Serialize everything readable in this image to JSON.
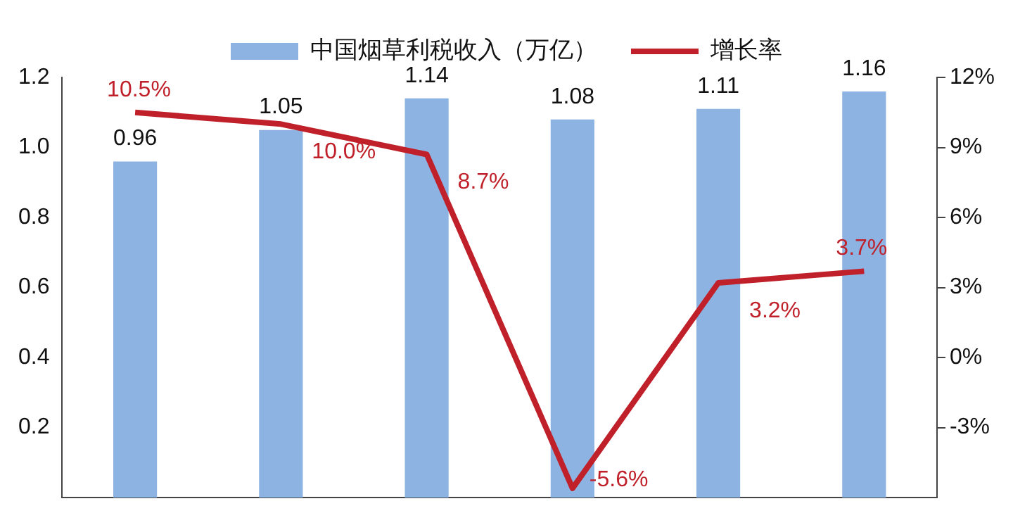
{
  "chart_data": {
    "type": "bar",
    "categories": [
      null,
      null,
      null,
      null,
      null,
      null
    ],
    "series": [
      {
        "name": "中国烟草利税收入（万亿）",
        "color": "#8db3e2",
        "values": [
          0.96,
          1.05,
          1.14,
          1.08,
          1.11,
          1.16
        ],
        "value_labels": [
          "0.96",
          "1.05",
          "1.14",
          "1.08",
          "1.11",
          "1.16"
        ]
      },
      {
        "name": "增长率",
        "type": "line",
        "axis": "y2",
        "color": "#c0202a",
        "values": [
          10.5,
          10.0,
          8.7,
          -5.6,
          3.2,
          3.7
        ],
        "value_labels": [
          "10.5%",
          "10.0%",
          "8.7%",
          "-5.6%",
          "3.2%",
          "3.7%"
        ]
      }
    ],
    "ylim": [
      0,
      1.2
    ],
    "yticks": [
      0.2,
      0.4,
      0.6,
      0.8,
      {
        "value": 1,
        "label": "1.0"
      },
      1.2
    ],
    "y2lim": [
      -6,
      12
    ],
    "y2ticks": [
      {
        "value": -3,
        "label": "-3%"
      },
      {
        "value": 0,
        "label": "0%"
      },
      {
        "value": 3,
        "label": "3%"
      },
      {
        "value": 6,
        "label": "6%"
      },
      {
        "value": 9,
        "label": "9%"
      },
      {
        "value": 12,
        "label": "12%"
      }
    ],
    "legend": "top",
    "grid": false,
    "marker": "none"
  }
}
